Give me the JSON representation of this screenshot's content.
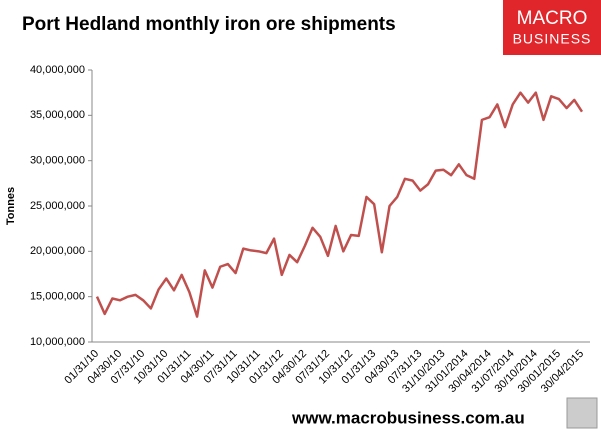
{
  "chart_data": {
    "type": "line",
    "title": "Port Hedland monthly iron ore shipments",
    "y_label": "Tonnes",
    "categories": [
      "01/31/10",
      null,
      null,
      "04/30/10",
      null,
      null,
      "07/31/10",
      null,
      null,
      "10/31/10",
      null,
      null,
      "01/31/11",
      null,
      null,
      "04/30/11",
      null,
      null,
      "07/31/11",
      null,
      null,
      "10/31/11",
      null,
      null,
      "01/31/12",
      null,
      null,
      "04/30/12",
      null,
      null,
      "07/31/12",
      null,
      null,
      "10/31/12",
      null,
      null,
      "01/31/13",
      null,
      null,
      "04/30/13",
      null,
      null,
      "07/31/13",
      null,
      null,
      "31/10/2013",
      null,
      null,
      "31/01/2014",
      null,
      null,
      "30/04/2014",
      null,
      null,
      "31/07/2014",
      null,
      null,
      "30/10/2014",
      null,
      null,
      "30/01/2015",
      null,
      null,
      "30/04/2015"
    ],
    "series": [
      {
        "name": "Shipments",
        "color": "#c0504d",
        "values": [
          15000000,
          13100000,
          14800000,
          14600000,
          15000000,
          15200000,
          14600000,
          13700000,
          15800000,
          17000000,
          15700000,
          17400000,
          15500000,
          12800000,
          17900000,
          16000000,
          18300000,
          18600000,
          17600000,
          20300000,
          20100000,
          20000000,
          19800000,
          21400000,
          17400000,
          19600000,
          18800000,
          20600000,
          22600000,
          21600000,
          19500000,
          22800000,
          20000000,
          21800000,
          21700000,
          26000000,
          25200000,
          19900000,
          25000000,
          26000000,
          28000000,
          27800000,
          26700000,
          27400000,
          28900000,
          29000000,
          28400000,
          29600000,
          28400000,
          28000000,
          34500000,
          34800000,
          36200000,
          33700000,
          36200000,
          37500000,
          36400000,
          37500000,
          34500000,
          37100000,
          36800000,
          35800000,
          36700000,
          35400000
        ]
      }
    ],
    "ylim": [
      10000000,
      40000000
    ],
    "yticks": [
      {
        "value": 10000000,
        "label": "10,000,000"
      },
      {
        "value": 15000000,
        "label": "15,000,000"
      },
      {
        "value": 20000000,
        "label": "20,000,000"
      },
      {
        "value": 25000000,
        "label": "25,000,000"
      },
      {
        "value": 30000000,
        "label": "30,000,000"
      },
      {
        "value": 35000000,
        "label": "35,000,000"
      },
      {
        "value": 40000000,
        "label": "40,000,000"
      }
    ],
    "grid": false
  },
  "logo": {
    "line1": "MACRO",
    "line2": "BUSINESS"
  },
  "footer": "www.macrobusiness.com.au"
}
